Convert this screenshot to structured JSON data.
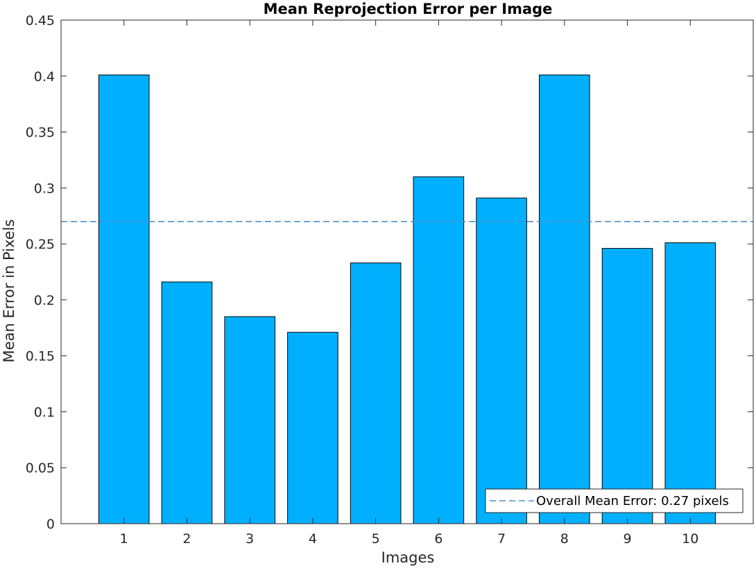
{
  "chart_data": {
    "type": "bar",
    "title": "Mean Reprojection Error per Image",
    "xlabel": "Images",
    "ylabel": "Mean Error in Pixels",
    "categories": [
      "1",
      "2",
      "3",
      "4",
      "5",
      "6",
      "7",
      "8",
      "9",
      "10"
    ],
    "values": [
      0.401,
      0.216,
      0.185,
      0.171,
      0.233,
      0.31,
      0.291,
      0.401,
      0.246,
      0.251
    ],
    "xlim": [
      0,
      11
    ],
    "ylim": [
      0,
      0.45
    ],
    "yticks": [
      0,
      0.05,
      0.1,
      0.15,
      0.2,
      0.25,
      0.3,
      0.35,
      0.4,
      0.45
    ],
    "ytick_labels": [
      "0",
      "0.05",
      "0.1",
      "0.15",
      "0.2",
      "0.25",
      "0.3",
      "0.35",
      "0.4",
      "0.45"
    ],
    "grid": false,
    "bar_color": "#00B0FF",
    "bar_edge_color": "#000000",
    "reference_line": {
      "value": 0.27,
      "style": "dashed",
      "color": "#4A90C8",
      "label": "Overall Mean Error: 0.27 pixels"
    },
    "legend": {
      "position": "bottom-right",
      "entries": [
        "Overall Mean Error: 0.27 pixels"
      ]
    }
  }
}
